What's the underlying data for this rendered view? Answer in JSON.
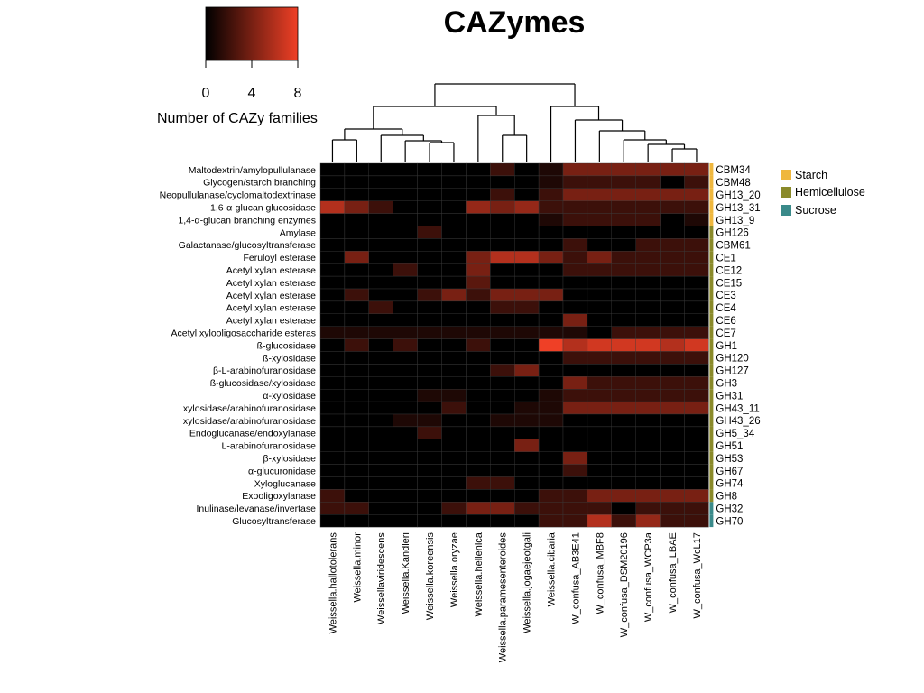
{
  "chart_data": {
    "type": "heatmap",
    "title": "CAZymes",
    "color_scale": {
      "label": "Number of CAZy families",
      "min": 0,
      "max": 8,
      "ticks": [
        0,
        4,
        8
      ],
      "low_color": "#000000",
      "high_color": "#ef4026"
    },
    "columns": [
      "Weissella.hallotolerans",
      "Weissella.minor",
      "Weissellaviridescens",
      "Weissella.Kandleri",
      "Weissella.koreensis",
      "Weissella.oryzae",
      "Weissella.hellenica",
      "Weissella.paramesenteroides",
      "Weissella.jogaejeotgali",
      "Weissella.cibaria",
      "W_confusa_AB3E41",
      "W_confusa_MBF8",
      "W_confusa_DSM20196",
      "W_confusa_WCP3a",
      "W_confusa_LBAE",
      "W_confusa_WcL17"
    ],
    "rows": [
      {
        "label": "Maltodextrin/amylopullulanase",
        "family": "CBM34",
        "group": "Starch",
        "values": [
          0,
          0,
          0,
          0,
          0,
          0,
          0,
          2,
          0,
          1,
          4,
          4,
          4,
          4,
          4,
          4
        ]
      },
      {
        "label": "Glycogen/starch branching",
        "family": "CBM48",
        "group": "Starch",
        "values": [
          0,
          0,
          0,
          0,
          0,
          0,
          0,
          0,
          0,
          1,
          2,
          2,
          2,
          2,
          0,
          2
        ]
      },
      {
        "label": "Neopullulanase/cyclomaltodextrinase",
        "family": "GH13_20",
        "group": "Starch",
        "values": [
          0,
          0,
          0,
          0,
          0,
          0,
          0,
          2,
          0,
          2,
          4,
          4,
          4,
          4,
          4,
          4
        ]
      },
      {
        "label": "1,6-α-glucan glucosidase",
        "family": "GH13_31",
        "group": "Starch",
        "values": [
          6,
          4,
          2,
          0,
          0,
          0,
          5,
          4,
          5,
          2,
          2,
          2,
          2,
          2,
          2,
          2
        ]
      },
      {
        "label": "1,4-α-glucan branching enzymes",
        "family": "GH13_9",
        "group": "Starch",
        "values": [
          0,
          0,
          0,
          0,
          0,
          0,
          0,
          0,
          0,
          1,
          2,
          2,
          2,
          2,
          0,
          1
        ]
      },
      {
        "label": "Amylase",
        "family": "GH126",
        "group": "Hemicellulose",
        "values": [
          0,
          0,
          0,
          0,
          2,
          0,
          0,
          0,
          0,
          0,
          0,
          0,
          0,
          0,
          0,
          0
        ]
      },
      {
        "label": "Galactanase/glucosyltransferase",
        "family": "CBM61",
        "group": "Hemicellulose",
        "values": [
          0,
          0,
          0,
          0,
          0,
          0,
          0,
          0,
          0,
          0,
          2,
          0,
          0,
          2,
          2,
          2
        ]
      },
      {
        "label": "Feruloyl esterase",
        "family": "CE1",
        "group": "Hemicellulose",
        "values": [
          0,
          4,
          0,
          0,
          0,
          0,
          4,
          6,
          6,
          4,
          2,
          4,
          2,
          2,
          2,
          2
        ]
      },
      {
        "label": "Acetyl xylan esterase",
        "family": "CE12",
        "group": "Hemicellulose",
        "values": [
          0,
          0,
          0,
          2,
          0,
          0,
          4,
          0,
          0,
          0,
          2,
          2,
          2,
          2,
          2,
          2
        ]
      },
      {
        "label": "Acetyl xylan esterase",
        "family": "CE15",
        "group": "Hemicellulose",
        "values": [
          0,
          0,
          0,
          0,
          0,
          0,
          3,
          0,
          0,
          0,
          0,
          0,
          0,
          0,
          0,
          0
        ]
      },
      {
        "label": "Acetyl xylan esterase",
        "family": "CE3",
        "group": "Hemicellulose",
        "values": [
          0,
          2,
          0,
          0,
          2,
          4,
          2,
          4,
          4,
          4,
          0,
          0,
          0,
          0,
          0,
          0
        ]
      },
      {
        "label": "Acetyl xylan esterase ",
        "family": "CE4",
        "group": "Hemicellulose",
        "values": [
          0,
          0,
          2,
          0,
          0,
          0,
          0,
          2,
          2,
          0,
          0,
          0,
          0,
          0,
          0,
          0
        ]
      },
      {
        "label": "Acetyl xylan esterase",
        "family": "CE6",
        "group": "Hemicellulose",
        "values": [
          0,
          0,
          0,
          0,
          0,
          0,
          0,
          0,
          0,
          0,
          4,
          0,
          0,
          0,
          0,
          0
        ]
      },
      {
        "label": "Acetyl xylooligosaccharide esteras",
        "family": "CE7",
        "group": "Hemicellulose",
        "values": [
          1,
          1,
          1,
          1,
          1,
          1,
          1,
          1,
          1,
          1,
          1,
          0,
          2,
          2,
          2,
          2
        ]
      },
      {
        "label": "ß-glucosidase",
        "family": "GH1",
        "group": "Hemicellulose",
        "values": [
          0,
          2,
          0,
          2,
          0,
          0,
          2,
          0,
          0,
          8,
          6,
          7,
          7,
          7,
          6,
          7
        ]
      },
      {
        "label": "ß-xylosidase",
        "family": "GH120",
        "group": "Hemicellulose",
        "values": [
          0,
          0,
          0,
          0,
          0,
          0,
          0,
          0,
          0,
          0,
          2,
          2,
          2,
          2,
          2,
          2
        ]
      },
      {
        "label": "β-L-arabinofuranosidase",
        "family": "GH127",
        "group": "Hemicellulose",
        "values": [
          0,
          0,
          0,
          0,
          0,
          0,
          0,
          2,
          4,
          0,
          0,
          0,
          0,
          0,
          0,
          0
        ]
      },
      {
        "label": "ß-glucosidase/xylosidase",
        "family": "GH3",
        "group": "Hemicellulose",
        "values": [
          0,
          0,
          0,
          0,
          0,
          0,
          0,
          0,
          0,
          0,
          4,
          2,
          2,
          2,
          2,
          2
        ]
      },
      {
        "label": "α-xylosidase",
        "family": "GH31",
        "group": "Hemicellulose",
        "values": [
          0,
          0,
          0,
          0,
          1,
          1,
          0,
          0,
          0,
          1,
          2,
          2,
          2,
          2,
          2,
          2
        ]
      },
      {
        "label": "xylosidase/arabinofuranosidase",
        "family": "GH43_11",
        "group": "Hemicellulose",
        "values": [
          0,
          0,
          0,
          0,
          0,
          2,
          0,
          0,
          1,
          1,
          4,
          4,
          4,
          4,
          4,
          4
        ]
      },
      {
        "label": "xylosidase/arabinofuranosidase",
        "family": "GH43_26",
        "group": "Hemicellulose",
        "values": [
          0,
          0,
          0,
          1,
          1,
          0,
          0,
          1,
          1,
          1,
          0,
          0,
          0,
          0,
          0,
          0
        ]
      },
      {
        "label": "Endoglucanase/endoxylanase",
        "family": "GH5_34",
        "group": "Hemicellulose",
        "values": [
          0,
          0,
          0,
          0,
          2,
          0,
          0,
          0,
          0,
          0,
          0,
          0,
          0,
          0,
          0,
          0
        ]
      },
      {
        "label": "L-arabinofuranosidase",
        "family": "GH51",
        "group": "Hemicellulose",
        "values": [
          0,
          0,
          0,
          0,
          0,
          0,
          0,
          0,
          4,
          0,
          0,
          0,
          0,
          0,
          0,
          0
        ]
      },
      {
        "label": "β-xylosidase",
        "family": "GH53",
        "group": "Hemicellulose",
        "values": [
          0,
          0,
          0,
          0,
          0,
          0,
          0,
          0,
          0,
          0,
          4,
          0,
          0,
          0,
          0,
          0
        ]
      },
      {
        "label": "α-glucuronidase",
        "family": "GH67",
        "group": "Hemicellulose",
        "values": [
          0,
          0,
          0,
          0,
          0,
          0,
          0,
          0,
          0,
          0,
          2,
          0,
          0,
          0,
          0,
          0
        ]
      },
      {
        "label": "Xyloglucanase",
        "family": "GH74",
        "group": "Hemicellulose",
        "values": [
          0,
          0,
          0,
          0,
          0,
          0,
          2,
          2,
          0,
          0,
          0,
          0,
          0,
          0,
          0,
          0
        ]
      },
      {
        "label": "Exooligoxylanase",
        "family": "GH8",
        "group": "Hemicellulose",
        "values": [
          2,
          0,
          0,
          0,
          0,
          0,
          0,
          0,
          0,
          2,
          2,
          4,
          4,
          4,
          4,
          4
        ]
      },
      {
        "label": "Inulinase/levanase/invertase",
        "family": "GH32",
        "group": "Sucrose",
        "values": [
          2,
          2,
          0,
          0,
          0,
          2,
          4,
          4,
          2,
          2,
          2,
          2,
          0,
          2,
          2,
          2
        ]
      },
      {
        "label": "Glucosyltransferase",
        "family": "GH70",
        "group": "Sucrose",
        "values": [
          0,
          0,
          0,
          0,
          0,
          0,
          0,
          0,
          0,
          2,
          2,
          6,
          2,
          5,
          2,
          2
        ]
      }
    ],
    "groups": [
      {
        "name": "Starch",
        "color": "#efb73e"
      },
      {
        "name": "Hemicellulose",
        "color": "#8a8a2a"
      },
      {
        "name": "Sucrose",
        "color": "#3a8a8a"
      }
    ],
    "grid": false
  }
}
